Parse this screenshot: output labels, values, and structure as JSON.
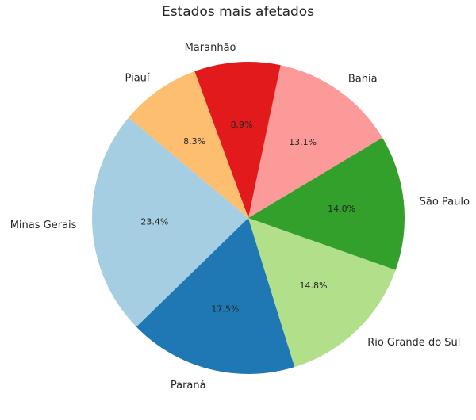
{
  "chart_data": {
    "type": "pie",
    "title": "Estados mais afetados",
    "start_angle_deg": 140,
    "direction": "counterclockwise",
    "categories": [
      "Minas Gerais",
      "Paraná",
      "Rio Grande do Sul",
      "São Paulo",
      "Bahia",
      "Maranhão",
      "Piauí"
    ],
    "values": [
      23.4,
      17.5,
      14.8,
      14.0,
      13.1,
      8.9,
      8.3
    ],
    "value_labels": [
      "23.4%",
      "17.5%",
      "14.8%",
      "14.0%",
      "13.1%",
      "8.9%",
      "8.3%"
    ],
    "colors": [
      "#a6cee3",
      "#1f78b4",
      "#b2df8a",
      "#33a02c",
      "#fb9a99",
      "#e31a1c",
      "#fdbf6f"
    ],
    "legend": "none"
  }
}
